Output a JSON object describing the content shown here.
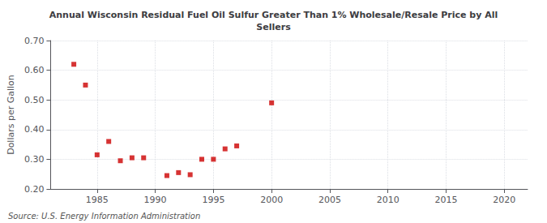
{
  "chart_data": {
    "type": "scatter",
    "title": "Annual Wisconsin Residual Fuel Oil Sulfur Greater Than 1% Wholesale/Resale Price by All\nSellers",
    "ylabel": "Dollars per Gallon",
    "annotation": "Source: U.S. Energy Information Administration",
    "x": [
      1983,
      1984,
      1985,
      1986,
      1987,
      1988,
      1989,
      1991,
      1992,
      1993,
      1994,
      1995,
      1996,
      1997,
      2000
    ],
    "values": [
      0.62,
      0.55,
      0.315,
      0.36,
      0.295,
      0.305,
      0.305,
      0.245,
      0.255,
      0.248,
      0.3,
      0.3,
      0.335,
      0.345,
      0.49
    ],
    "color": "#cc0000",
    "marker": "square",
    "xlim": [
      1981,
      2022
    ],
    "xticks": [
      1985,
      1990,
      1995,
      2000,
      2005,
      2010,
      2015,
      2020
    ],
    "ylim": [
      0.2,
      0.7
    ],
    "yticks": [
      {
        "value": 0.2,
        "label": "0.20"
      },
      {
        "value": 0.3,
        "label": "0.30"
      },
      {
        "value": 0.4,
        "label": "0.40"
      },
      {
        "value": 0.5,
        "label": "0.50"
      },
      {
        "value": 0.6,
        "label": "0.60"
      },
      {
        "value": 0.7,
        "label": "0.70"
      }
    ],
    "grid": true
  }
}
